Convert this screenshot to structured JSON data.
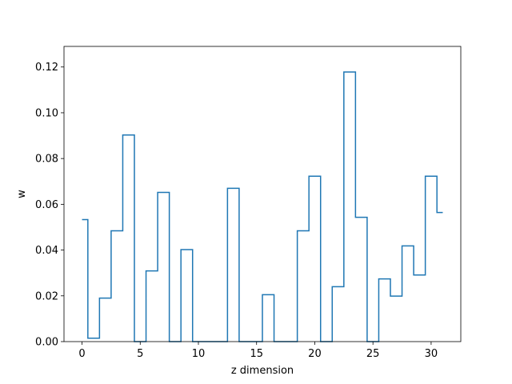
{
  "chart_data": {
    "type": "line",
    "step": "mid",
    "xlabel": "z dimension",
    "ylabel": "w",
    "xlim": [
      -1.55,
      32.55
    ],
    "ylim": [
      0,
      0.129
    ],
    "x": [
      0,
      1,
      2,
      3,
      4,
      5,
      6,
      7,
      8,
      9,
      10,
      11,
      12,
      13,
      14,
      15,
      16,
      17,
      18,
      19,
      20,
      21,
      22,
      23,
      24,
      25,
      26,
      27,
      28,
      29,
      30,
      31
    ],
    "series": [
      {
        "color": "#1f77b4",
        "values": [
          0.0533,
          0.0015,
          0.019,
          0.0484,
          0.0903,
          0.0,
          0.0309,
          0.0652,
          0.0,
          0.0402,
          0.0,
          0.0,
          0.0,
          0.067,
          0.0,
          0.0,
          0.0205,
          0.0,
          0.0,
          0.0484,
          0.0723,
          0.0,
          0.024,
          0.1178,
          0.0543,
          0.0,
          0.0274,
          0.0199,
          0.0418,
          0.0291,
          0.0723,
          0.0564
        ]
      }
    ],
    "xticks": [
      0,
      5,
      10,
      15,
      20,
      25,
      30
    ],
    "xtick_labels": [
      "0",
      "5",
      "10",
      "15",
      "20",
      "25",
      "30"
    ],
    "yticks": [
      0.0,
      0.02,
      0.04,
      0.06,
      0.08,
      0.1,
      0.12
    ],
    "ytick_labels": [
      "0.00",
      "0.02",
      "0.04",
      "0.06",
      "0.08",
      "0.10",
      "0.12"
    ],
    "grid": false
  }
}
